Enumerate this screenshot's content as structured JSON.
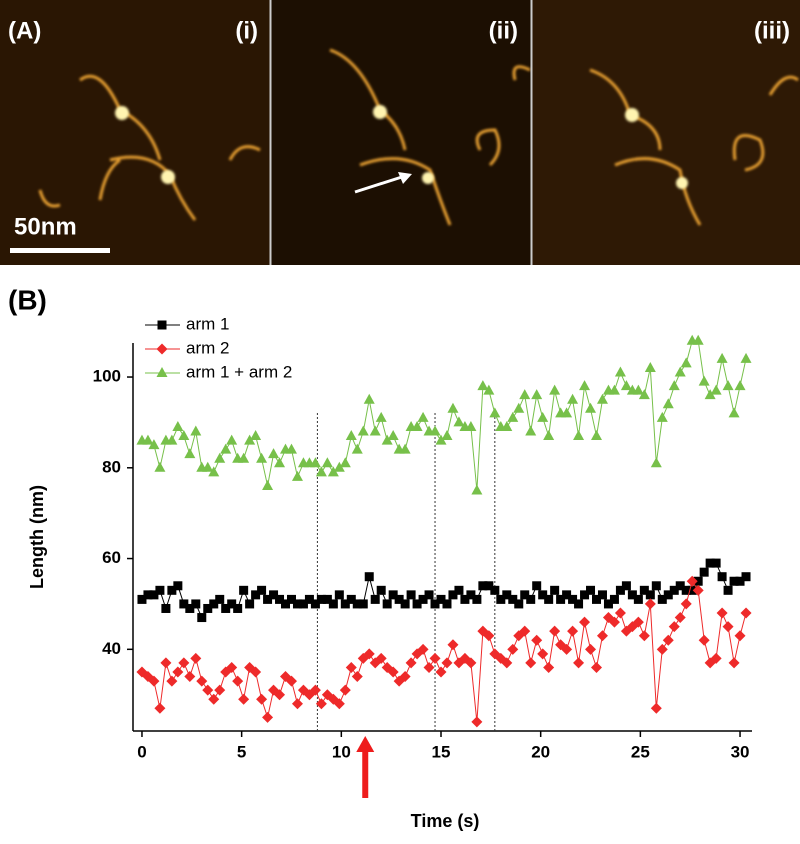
{
  "panel_a": {
    "label": "(A)",
    "images": [
      "(i)",
      "(ii)",
      "(iii)"
    ],
    "scale_bar": "50nm"
  },
  "chart_data": {
    "type": "line",
    "panel_label": "(B)",
    "x_label": "Time (s)",
    "y_label": "Length (nm)",
    "xlim": [
      -0.45,
      30.6
    ],
    "ylim": [
      22,
      107.5
    ],
    "xticks": [
      0,
      5,
      10,
      15,
      20,
      25,
      30
    ],
    "yticks": [
      40,
      60,
      80,
      100
    ],
    "legend": "upper left",
    "vlines": [
      8.8,
      14.7,
      17.7
    ],
    "arrow_x": 11.2,
    "arrow_color": "#ee1c1c",
    "x": [
      0,
      0.3,
      0.6,
      0.9,
      1.2,
      1.5,
      1.8,
      2.1,
      2.4,
      2.7,
      3,
      3.3,
      3.6,
      3.9,
      4.2,
      4.5,
      4.8,
      5.1,
      5.4,
      5.7,
      6,
      6.3,
      6.6,
      6.9,
      7.2,
      7.5,
      7.8,
      8.1,
      8.4,
      8.7,
      9,
      9.3,
      9.6,
      9.9,
      10.2,
      10.5,
      10.8,
      11.1,
      11.4,
      11.7,
      12,
      12.3,
      12.6,
      12.9,
      13.2,
      13.5,
      13.8,
      14.1,
      14.4,
      14.7,
      15,
      15.3,
      15.6,
      15.9,
      16.2,
      16.5,
      16.8,
      17.1,
      17.4,
      17.7,
      18,
      18.3,
      18.6,
      18.9,
      19.2,
      19.5,
      19.8,
      20.1,
      20.4,
      20.7,
      21,
      21.3,
      21.6,
      21.9,
      22.2,
      22.5,
      22.8,
      23.1,
      23.4,
      23.7,
      24,
      24.3,
      24.6,
      24.9,
      25.2,
      25.5,
      25.8,
      26.1,
      26.4,
      26.7,
      27,
      27.3,
      27.6,
      27.9,
      28.2,
      28.5,
      28.8,
      29.1,
      29.4,
      29.7,
      30,
      30.3
    ],
    "series": [
      {
        "name": "arm 1",
        "color": "#000000",
        "marker": "square",
        "values": [
          51,
          52,
          52,
          53,
          49,
          53,
          54,
          50,
          49,
          50,
          47,
          49,
          50,
          51,
          49,
          50,
          49,
          53,
          50,
          52,
          53,
          51,
          52,
          51,
          50,
          51,
          50,
          50,
          51,
          50,
          51,
          51,
          50,
          52,
          50,
          51,
          50,
          50,
          56,
          51,
          53,
          50,
          52,
          51,
          50,
          52,
          50,
          51,
          52,
          50,
          51,
          50,
          52,
          53,
          51,
          52,
          51,
          54,
          54,
          53,
          51,
          52,
          51,
          50,
          52,
          51,
          54,
          52,
          51,
          53,
          51,
          52,
          51,
          50,
          52,
          53,
          51,
          52,
          50,
          51,
          53,
          54,
          52,
          51,
          53,
          52,
          54,
          51,
          52,
          53,
          54,
          53,
          53,
          55,
          57,
          59,
          59,
          56,
          53,
          55,
          55,
          56
        ]
      },
      {
        "name": "arm 2",
        "color": "#ee2a2a",
        "marker": "diamond",
        "values": [
          35,
          34,
          33,
          27,
          37,
          33,
          35,
          37,
          34,
          38,
          33,
          31,
          29,
          31,
          35,
          36,
          33,
          29,
          36,
          35,
          29,
          25,
          31,
          30,
          34,
          33,
          28,
          31,
          30,
          31,
          28,
          30,
          29,
          28,
          31,
          36,
          34,
          38,
          39,
          37,
          38,
          36,
          35,
          33,
          34,
          37,
          39,
          40,
          36,
          38,
          35,
          37,
          41,
          37,
          38,
          37,
          24,
          44,
          43,
          39,
          38,
          37,
          40,
          43,
          44,
          37,
          42,
          39,
          36,
          44,
          41,
          40,
          44,
          37,
          46,
          40,
          36,
          43,
          47,
          46,
          48,
          44,
          45,
          46,
          43,
          50,
          27,
          40,
          42,
          45,
          47,
          50,
          55,
          53,
          42,
          37,
          38,
          48,
          45,
          37,
          43,
          48
        ]
      },
      {
        "name": "arm 1 + arm 2",
        "color": "#77c04a",
        "marker": "triangle",
        "values": [
          86,
          86,
          85,
          80,
          86,
          86,
          89,
          87,
          83,
          88,
          80,
          80,
          79,
          82,
          84,
          86,
          82,
          82,
          86,
          87,
          82,
          76,
          83,
          81,
          84,
          84,
          78,
          81,
          81,
          81,
          79,
          81,
          79,
          80,
          81,
          87,
          84,
          88,
          95,
          88,
          91,
          86,
          87,
          84,
          84,
          89,
          89,
          91,
          88,
          88,
          86,
          87,
          93,
          90,
          89,
          89,
          75,
          98,
          97,
          92,
          89,
          89,
          91,
          93,
          96,
          88,
          96,
          91,
          87,
          97,
          92,
          92,
          95,
          87,
          98,
          93,
          87,
          95,
          97,
          97,
          101,
          98,
          97,
          97,
          96,
          102,
          81,
          91,
          94,
          98,
          101,
          103,
          108,
          108,
          99,
          96,
          97,
          104,
          98,
          92,
          98,
          104
        ]
      }
    ]
  }
}
